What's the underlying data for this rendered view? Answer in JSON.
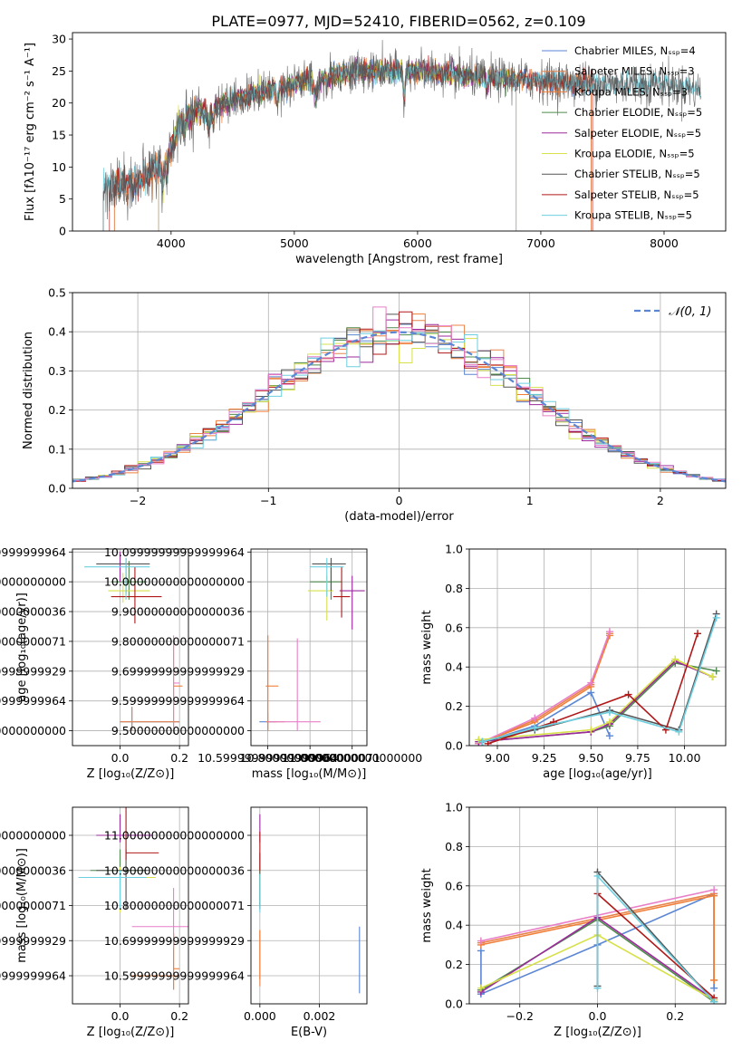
{
  "figure_title": "PLATE=0977, MJD=52410, FIBERID=0562, z=0.109",
  "colors": {
    "Chabrier MILES": "#5b86d4",
    "Salpeter MILES": "#e8834a",
    "Kroupa MILES": "#f07f3a",
    "Chabrier ELODIE": "#4e8a4e",
    "Salpeter ELODIE": "#9c2a9c",
    "Kroupa ELODIE": "#d8e04a",
    "Chabrier STELIB": "#555555",
    "Salpeter STELIB": "#b01818",
    "Kroupa STELIB": "#6dcfe0",
    "Pink": "#e87fc8",
    "Gauss": "#5b86d4"
  },
  "chart_data": [
    {
      "id": "spectrum",
      "type": "line",
      "title": "PLATE=0977, MJD=52410, FIBERID=0562, z=0.109",
      "xlabel": "wavelength [Angstrom, rest frame]",
      "ylabel": "Flux [fλ10⁻¹⁷ erg cm⁻² s⁻¹ A⁻¹]",
      "xlim": [
        3200,
        8500
      ],
      "ylim": [
        0,
        31
      ],
      "xticks": [
        4000,
        5000,
        6000,
        7000,
        8000
      ],
      "yticks": [
        0,
        5,
        10,
        15,
        20,
        25,
        30
      ],
      "grid": false,
      "legend_position": "top-right",
      "legend": [
        "Chabrier MILES, Nₛₛₚ=4",
        "Salpeter MILES, Nₛₛₚ=3",
        "Kroupa MILES, Nₛₛₚ=3",
        "Chabrier ELODIE, Nₛₛₚ=5",
        "Salpeter ELODIE, Nₛₛₚ=5",
        "Kroupa ELODIE, Nₛₛₚ=5",
        "Chabrier STELIB, Nₛₛₚ=5",
        "Salpeter STELIB, Nₛₛₚ=5",
        "Kroupa STELIB, Nₛₛₚ=5"
      ],
      "continuum": [
        [
          3500,
          7
        ],
        [
          3700,
          7.5
        ],
        [
          3900,
          10
        ],
        [
          4000,
          13
        ],
        [
          4100,
          18
        ],
        [
          4300,
          19
        ],
        [
          4500,
          20.5
        ],
        [
          4800,
          22
        ],
        [
          5000,
          23
        ],
        [
          5200,
          24
        ],
        [
          5500,
          25
        ],
        [
          6000,
          25
        ],
        [
          6500,
          24
        ],
        [
          7000,
          23.5
        ],
        [
          7500,
          23
        ],
        [
          8000,
          23
        ],
        [
          8300,
          22
        ]
      ]
    },
    {
      "id": "residuals",
      "type": "histogram",
      "xlabel": "(data-model)/error",
      "ylabel": "Normed distribution",
      "xlim": [
        -2.5,
        2.5
      ],
      "ylim": [
        0,
        0.5
      ],
      "xticks": [
        -2,
        -1,
        0,
        1,
        2
      ],
      "yticks": [
        0,
        0.1,
        0.2,
        0.3,
        0.4,
        0.5
      ],
      "grid": true,
      "legend_position": "top-right",
      "legend": [
        "𝒩(0, 1)"
      ],
      "bin_width": 0.1
    },
    {
      "id": "age_vs_Z",
      "type": "errorbar",
      "xlabel": "Z [log₁₀(Z/Z⊙)]",
      "ylabel": "age  [log₁₀(age/yr)]",
      "xlim": [
        -0.16,
        0.23
      ],
      "ylim": [
        9.45,
        10.11
      ],
      "xticks": [
        0.0,
        0.2
      ],
      "yticks": [
        9.5,
        9.6,
        9.7,
        9.8,
        9.9,
        10.0,
        10.1
      ],
      "grid": true,
      "points": [
        {
          "model": "Chabrier MILES",
          "x": 0.04,
          "xerr": [
            0.04,
            0.16
          ],
          "y": 9.53,
          "yerr": [
            0.03,
            0.05
          ]
        },
        {
          "model": "Salpeter MILES",
          "x": 0.04,
          "xerr": [
            0.04,
            0.16
          ],
          "y": 9.53,
          "yerr": [
            0.03,
            0.05
          ]
        },
        {
          "model": "Kroupa MILES",
          "x": 0.18,
          "xerr": [
            0.0,
            0.03
          ],
          "y": 9.65,
          "yerr": [
            0.15,
            0.15
          ]
        },
        {
          "model": "Pink",
          "x": 0.18,
          "xerr": [
            0.0,
            0.02
          ],
          "y": 9.66,
          "yerr": [
            0.17,
            0.16
          ]
        },
        {
          "model": "Chabrier ELODIE",
          "x": 0.03,
          "xerr": [
            0.06,
            0.06
          ],
          "y": 10.0,
          "yerr": [
            0.06,
            0.07
          ]
        },
        {
          "model": "Salpeter ELODIE",
          "x": 0.0,
          "xerr": [
            0.0,
            0.0
          ],
          "y": 10.05,
          "yerr": [
            0.05,
            0.05
          ]
        },
        {
          "model": "Kroupa ELODIE",
          "x": 0.01,
          "xerr": [
            0.05,
            0.09
          ],
          "y": 9.97,
          "yerr": [
            0.04,
            0.06
          ]
        },
        {
          "model": "Chabrier STELIB",
          "x": 0.02,
          "xerr": [
            0.1,
            0.08
          ],
          "y": 10.06,
          "yerr": [
            0.1,
            0.02
          ]
        },
        {
          "model": "Salpeter STELIB",
          "x": 0.05,
          "xerr": [
            0.08,
            0.09
          ],
          "y": 9.95,
          "yerr": [
            0.09,
            0.1
          ]
        },
        {
          "model": "Kroupa STELIB",
          "x": 0.02,
          "xerr": [
            0.14,
            0.08
          ],
          "y": 10.05,
          "yerr": [
            0.11,
            0.03
          ]
        }
      ]
    },
    {
      "id": "age_vs_mass",
      "type": "errorbar",
      "xlabel": "mass [log₁₀(M/M⊙)]",
      "ylabel": "",
      "xlim": [
        10.52,
        11.07
      ],
      "ylim": [
        9.45,
        10.11
      ],
      "xticks": [
        10.6,
        10.8,
        11.0
      ],
      "yticks": [
        9.5,
        9.6,
        9.7,
        9.8,
        9.9,
        10.0,
        10.1
      ],
      "grid": true,
      "points": [
        {
          "model": "Chabrier MILES",
          "x": 10.6,
          "xerr": [
            0.04,
            0.04
          ],
          "y": 9.53,
          "yerr": [
            0.03,
            0.03
          ]
        },
        {
          "model": "Salpeter MILES",
          "x": 10.6,
          "xerr": [
            0.01,
            0.08
          ],
          "y": 9.53,
          "yerr": [
            0.03,
            0.29
          ]
        },
        {
          "model": "Kroupa MILES",
          "x": 10.6,
          "xerr": [
            0.01,
            0.05
          ],
          "y": 9.65,
          "yerr": [
            0.15,
            0.17
          ]
        },
        {
          "model": "Pink",
          "x": 10.74,
          "xerr": [
            0.14,
            0.11
          ],
          "y": 9.53,
          "yerr": [
            0.03,
            0.28
          ]
        },
        {
          "model": "Chabrier ELODIE",
          "x": 10.9,
          "xerr": [
            0.1,
            0.05
          ],
          "y": 10.0,
          "yerr": [
            0.06,
            0.06
          ]
        },
        {
          "model": "Salpeter ELODIE",
          "x": 11.0,
          "xerr": [
            0.06,
            0.06
          ],
          "y": 9.97,
          "yerr": [
            0.13,
            0.05
          ]
        },
        {
          "model": "Kroupa ELODIE",
          "x": 10.88,
          "xerr": [
            0.09,
            0.03
          ],
          "y": 9.97,
          "yerr": [
            0.1,
            0.05
          ]
        },
        {
          "model": "Chabrier STELIB",
          "x": 10.9,
          "xerr": [
            0.09,
            0.07
          ],
          "y": 10.06,
          "yerr": [
            0.09,
            0.02
          ]
        },
        {
          "model": "Salpeter STELIB",
          "x": 10.95,
          "xerr": [
            0.04,
            0.04
          ],
          "y": 9.95,
          "yerr": [
            0.07,
            0.1
          ]
        },
        {
          "model": "Kroupa STELIB",
          "x": 10.88,
          "xerr": [
            0.08,
            0.08
          ],
          "y": 10.05,
          "yerr": [
            0.1,
            0.03
          ]
        }
      ]
    },
    {
      "id": "mass_weight_vs_age",
      "type": "line",
      "xlabel": "age  [log₁₀(age/yr)]",
      "ylabel": "mass weight",
      "xlim": [
        8.85,
        10.22
      ],
      "ylim": [
        0,
        1.0
      ],
      "xticks": [
        9.0,
        9.25,
        9.5,
        9.75,
        10.0
      ],
      "yticks": [
        0.0,
        0.2,
        0.4,
        0.6,
        0.8,
        1.0
      ],
      "grid": true,
      "series": [
        {
          "model": "Chabrier MILES",
          "x": [
            8.9,
            9.2,
            9.5,
            9.6
          ],
          "y": [
            0.01,
            0.1,
            0.27,
            0.05
          ]
        },
        {
          "model": "Salpeter MILES",
          "x": [
            8.9,
            9.2,
            9.5,
            9.6
          ],
          "y": [
            0.01,
            0.13,
            0.31,
            0.57
          ]
        },
        {
          "model": "Kroupa MILES",
          "x": [
            8.9,
            9.2,
            9.5,
            9.6
          ],
          "y": [
            0.01,
            0.12,
            0.3,
            0.56
          ]
        },
        {
          "model": "Pink",
          "x": [
            8.9,
            9.2,
            9.5,
            9.6
          ],
          "y": [
            0.01,
            0.14,
            0.32,
            0.58
          ]
        },
        {
          "model": "Chabrier ELODIE",
          "x": [
            8.9,
            9.5,
            9.6,
            9.95,
            10.17
          ],
          "y": [
            0.02,
            0.07,
            0.1,
            0.42,
            0.38
          ]
        },
        {
          "model": "Salpeter ELODIE",
          "x": [
            8.9,
            9.5,
            9.6,
            9.95,
            10.15
          ],
          "y": [
            0.02,
            0.07,
            0.11,
            0.43,
            0.35
          ]
        },
        {
          "model": "Kroupa ELODIE",
          "x": [
            8.9,
            9.5,
            9.6,
            9.95,
            10.15
          ],
          "y": [
            0.03,
            0.08,
            0.12,
            0.44,
            0.35
          ]
        },
        {
          "model": "Chabrier STELIB",
          "x": [
            8.92,
            9.2,
            9.6,
            9.97,
            10.17
          ],
          "y": [
            0.02,
            0.08,
            0.18,
            0.08,
            0.67
          ]
        },
        {
          "model": "Salpeter STELIB",
          "x": [
            8.95,
            9.3,
            9.7,
            9.9,
            10.07
          ],
          "y": [
            0.01,
            0.12,
            0.26,
            0.08,
            0.57
          ]
        },
        {
          "model": "Kroupa STELIB",
          "x": [
            8.92,
            9.2,
            9.6,
            9.97,
            10.17
          ],
          "y": [
            0.02,
            0.09,
            0.17,
            0.07,
            0.65
          ]
        }
      ]
    },
    {
      "id": "mass_vs_Z",
      "type": "errorbar",
      "xlabel": "Z [log₁₀(Z/Z⊙)]",
      "ylabel": "mass [log₁₀(M/M⊙)]",
      "xlim": [
        -0.16,
        0.23
      ],
      "ylim": [
        10.52,
        11.08
      ],
      "xticks": [
        0.0,
        0.2
      ],
      "yticks": [
        10.6,
        10.7,
        10.8,
        10.9,
        11.0
      ],
      "grid": true,
      "points": [
        {
          "model": "Chabrier MILES",
          "x": 0.04,
          "xerr": [
            0.0,
            0.16
          ],
          "y": 10.6,
          "yerr": [
            0.0,
            0.0
          ]
        },
        {
          "model": "Salpeter MILES",
          "x": 0.18,
          "xerr": [
            0.14,
            0.02
          ],
          "y": 10.6,
          "yerr": [
            0.04,
            0.12
          ]
        },
        {
          "model": "Kroupa MILES",
          "x": 0.18,
          "xerr": [
            0.0,
            0.02
          ],
          "y": 10.62,
          "yerr": [
            0.06,
            0.1
          ]
        },
        {
          "model": "Pink",
          "x": 0.18,
          "xerr": [
            0.14,
            0.05
          ],
          "y": 10.74,
          "yerr": [
            0.06,
            0.11
          ]
        },
        {
          "model": "Chabrier ELODIE",
          "x": 0.0,
          "xerr": [
            0.1,
            0.09
          ],
          "y": 10.9,
          "yerr": [
            0.1,
            0.06
          ]
        },
        {
          "model": "Salpeter ELODIE",
          "x": 0.0,
          "xerr": [
            0.08,
            0.11
          ],
          "y": 11.0,
          "yerr": [
            0.02,
            0.06
          ]
        },
        {
          "model": "Kroupa ELODIE",
          "x": 0.0,
          "xerr": [
            0.1,
            0.12
          ],
          "y": 10.88,
          "yerr": [
            0.1,
            0.03
          ]
        },
        {
          "model": "Chabrier STELIB",
          "x": 0.02,
          "xerr": [
            0.1,
            0.08
          ],
          "y": 10.9,
          "yerr": [
            0.11,
            0.06
          ]
        },
        {
          "model": "Salpeter STELIB",
          "x": 0.02,
          "xerr": [
            0.0,
            0.11
          ],
          "y": 10.95,
          "yerr": [
            0.02,
            0.16
          ]
        },
        {
          "model": "Kroupa STELIB",
          "x": 0.0,
          "xerr": [
            0.14,
            0.09
          ],
          "y": 10.88,
          "yerr": [
            0.09,
            0.02
          ]
        }
      ]
    },
    {
      "id": "mass_vs_ebv",
      "type": "errorbar",
      "xlabel": "E(B-V)",
      "ylabel": "",
      "xlim": [
        -0.0003,
        0.0036
      ],
      "ylim": [
        10.52,
        11.08
      ],
      "xticks": [
        0.0,
        0.002
      ],
      "xtick_labels": [
        "0.000",
        "0.002"
      ],
      "yticks": [
        10.6,
        10.7,
        10.8,
        10.9,
        11.0
      ],
      "grid": true,
      "points": [
        {
          "model": "Chabrier MILES",
          "x": 0.00335,
          "xerr": [
            0,
            0
          ],
          "y": 10.64,
          "yerr": [
            0.09,
            0.1
          ]
        },
        {
          "model": "Salpeter MILES",
          "x": 0.0,
          "xerr": [
            0,
            0
          ],
          "y": 10.65,
          "yerr": [
            0.08,
            0.08
          ]
        },
        {
          "model": "Kroupa MILES",
          "x": 0.0,
          "xerr": [
            0,
            0
          ],
          "y": 10.66,
          "yerr": [
            0.07,
            0.07
          ]
        },
        {
          "model": "Chabrier ELODIE",
          "x": 0.0,
          "xerr": [
            0,
            0
          ],
          "y": 10.85,
          "yerr": [
            0.05,
            0.05
          ]
        },
        {
          "model": "Salpeter ELODIE",
          "x": 0.0,
          "xerr": [
            0,
            0
          ],
          "y": 11.0,
          "yerr": [
            0.02,
            0.06
          ]
        },
        {
          "model": "Kroupa ELODIE",
          "x": 0.0,
          "xerr": [
            0,
            0
          ],
          "y": 10.88,
          "yerr": [
            0.03,
            0.03
          ]
        },
        {
          "model": "Chabrier STELIB",
          "x": 0.0,
          "xerr": [
            0,
            0
          ],
          "y": 10.9,
          "yerr": [
            0.11,
            0.05
          ]
        },
        {
          "model": "Salpeter STELIB",
          "x": 0.0,
          "xerr": [
            0,
            0
          ],
          "y": 10.95,
          "yerr": [
            0.05,
            0.06
          ]
        },
        {
          "model": "Kroupa STELIB",
          "x": 0.0,
          "xerr": [
            0,
            0
          ],
          "y": 10.85,
          "yerr": [
            0.07,
            0.04
          ]
        }
      ]
    },
    {
      "id": "mass_weight_vs_Z",
      "type": "line",
      "xlabel": "Z [log₁₀(Z/Z⊙)]",
      "ylabel": "mass weight",
      "xlim": [
        -0.33,
        0.33
      ],
      "ylim": [
        0,
        1.0
      ],
      "xticks": [
        -0.2,
        0.0,
        0.2
      ],
      "yticks": [
        0.0,
        0.2,
        0.4,
        0.6,
        0.8,
        1.0
      ],
      "grid": true,
      "series": [
        {
          "model": "Chabrier MILES",
          "x": [
            -0.3,
            -0.3,
            0.0,
            0.3,
            0.3
          ],
          "y": [
            0.27,
            0.05,
            0.3,
            0.56,
            0.08
          ]
        },
        {
          "model": "Salpeter MILES",
          "x": [
            -0.3,
            0.3,
            0.3
          ],
          "y": [
            0.31,
            0.56,
            0.12
          ]
        },
        {
          "model": "Kroupa MILES",
          "x": [
            -0.3,
            0.3,
            0.3
          ],
          "y": [
            0.3,
            0.55,
            0.12
          ]
        },
        {
          "model": "Pink",
          "x": [
            -0.3,
            0.3
          ],
          "y": [
            0.32,
            0.58
          ]
        },
        {
          "model": "Chabrier ELODIE",
          "x": [
            -0.3,
            0.0,
            0.3
          ],
          "y": [
            0.07,
            0.43,
            0.01
          ]
        },
        {
          "model": "Salpeter ELODIE",
          "x": [
            -0.3,
            0.0,
            0.3
          ],
          "y": [
            0.06,
            0.44,
            0.02
          ]
        },
        {
          "model": "Kroupa ELODIE",
          "x": [
            -0.3,
            0.0,
            0.3
          ],
          "y": [
            0.08,
            0.35,
            0.02
          ]
        },
        {
          "model": "Chabrier STELIB",
          "x": [
            0.0,
            0.0,
            0.3
          ],
          "y": [
            0.09,
            0.67,
            0.01
          ]
        },
        {
          "model": "Salpeter STELIB",
          "x": [
            0.0,
            0.3
          ],
          "y": [
            0.56,
            0.03
          ]
        },
        {
          "model": "Kroupa STELIB",
          "x": [
            0.0,
            0.0,
            0.3
          ],
          "y": [
            0.08,
            0.65,
            0.01
          ]
        }
      ]
    }
  ]
}
